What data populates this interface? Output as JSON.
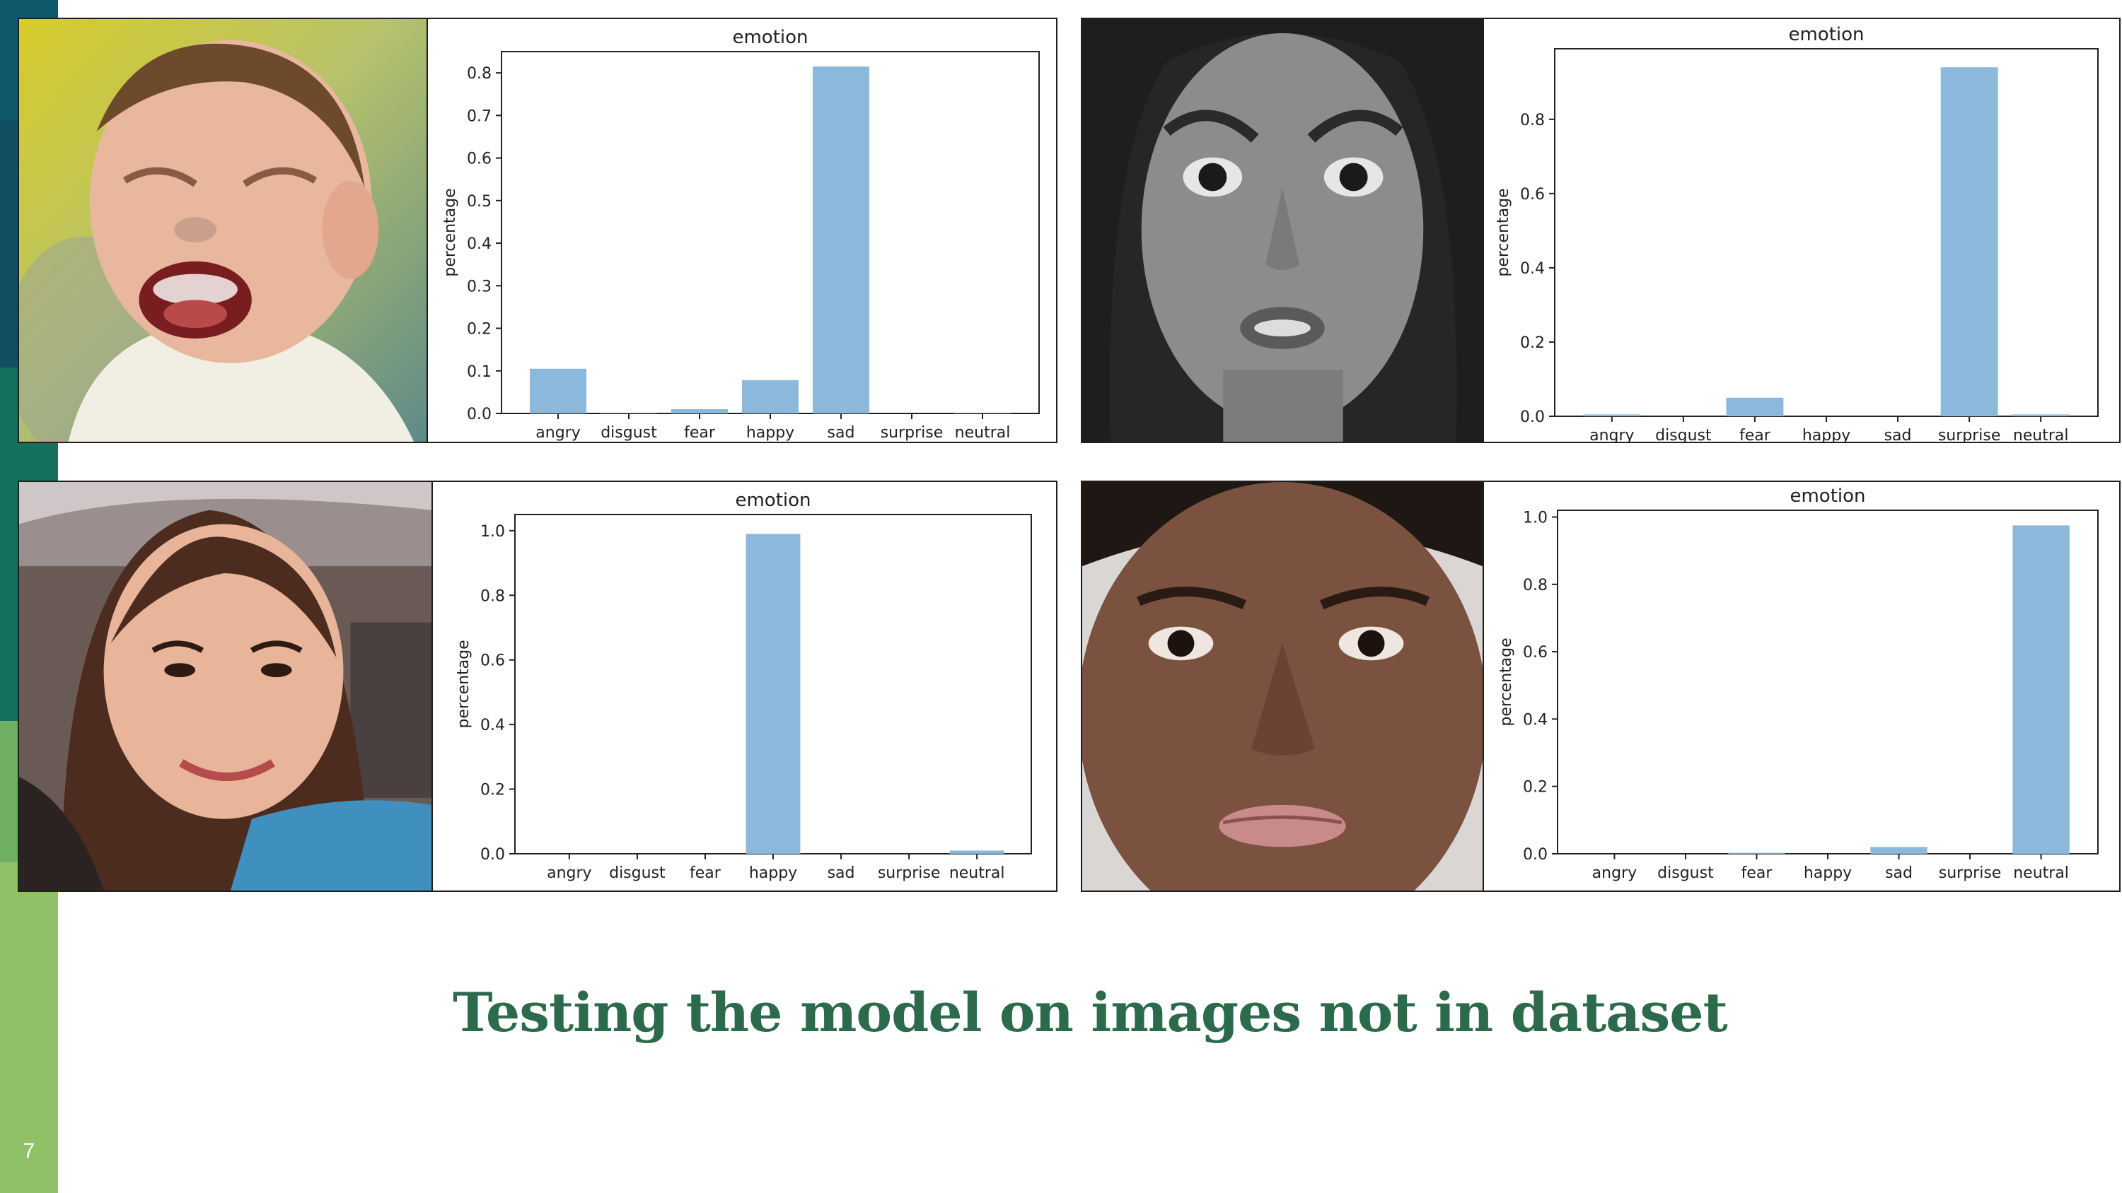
{
  "slide": {
    "title": "Testing the model on images not in dataset",
    "page_number": "7",
    "title_color": "#2b6a4a",
    "sidebar_colors": [
      "#0c5b66",
      "#125f5c",
      "#1a7a5c",
      "#8dbf62"
    ]
  },
  "panels": [
    {
      "photo": "crying-baby-photo"
    },
    {
      "photo": "surprised-woman-photo"
    },
    {
      "photo": "smiling-woman-photo"
    },
    {
      "photo": "neutral-woman-photo"
    }
  ],
  "chart_data": [
    {
      "type": "bar",
      "title": "emotion",
      "ylabel": "percentage",
      "categories": [
        "angry",
        "disgust",
        "fear",
        "happy",
        "sad",
        "surprise",
        "neutral"
      ],
      "values": [
        0.105,
        0.001,
        0.01,
        0.078,
        0.815,
        0.0,
        0.001
      ],
      "ylim": [
        0,
        0.85
      ],
      "yticks": [
        0.0,
        0.1,
        0.2,
        0.3,
        0.4,
        0.5,
        0.6,
        0.7,
        0.8
      ],
      "ytick_labels": [
        "0.0",
        "0.1",
        "0.2",
        "0.3",
        "0.4",
        "0.5",
        "0.6",
        "0.7",
        "0.8"
      ],
      "bar_color": "#8bb8db",
      "grid": false
    },
    {
      "type": "bar",
      "title": "emotion",
      "ylabel": "percentage",
      "categories": [
        "angry",
        "disgust",
        "fear",
        "happy",
        "sad",
        "surprise",
        "neutral"
      ],
      "values": [
        0.005,
        0.0,
        0.05,
        0.0,
        0.0,
        0.94,
        0.005
      ],
      "ylim": [
        0,
        0.99
      ],
      "yticks": [
        0.0,
        0.2,
        0.4,
        0.6,
        0.8
      ],
      "ytick_labels": [
        "0.0",
        "0.2",
        "0.4",
        "0.6",
        "0.8"
      ],
      "bar_color": "#8bb8db",
      "grid": false
    },
    {
      "type": "bar",
      "title": "emotion",
      "ylabel": "percentage",
      "categories": [
        "angry",
        "disgust",
        "fear",
        "happy",
        "sad",
        "surprise",
        "neutral"
      ],
      "values": [
        0.0,
        0.0,
        0.0,
        0.99,
        0.0,
        0.0,
        0.01
      ],
      "ylim": [
        0,
        1.05
      ],
      "yticks": [
        0.0,
        0.2,
        0.4,
        0.6,
        0.8,
        1.0
      ],
      "ytick_labels": [
        "0.0",
        "0.2",
        "0.4",
        "0.6",
        "0.8",
        "1.0"
      ],
      "bar_color": "#8bb8db",
      "grid": false
    },
    {
      "type": "bar",
      "title": "emotion",
      "ylabel": "percentage",
      "categories": [
        "angry",
        "disgust",
        "fear",
        "happy",
        "sad",
        "surprise",
        "neutral"
      ],
      "values": [
        0.0,
        0.0,
        0.003,
        0.0,
        0.02,
        0.0,
        0.975
      ],
      "ylim": [
        0,
        1.02
      ],
      "yticks": [
        0.0,
        0.2,
        0.4,
        0.6,
        0.8,
        1.0
      ],
      "ytick_labels": [
        "0.0",
        "0.2",
        "0.4",
        "0.6",
        "0.8",
        "1.0"
      ],
      "bar_color": "#8bb8db",
      "grid": false
    }
  ]
}
